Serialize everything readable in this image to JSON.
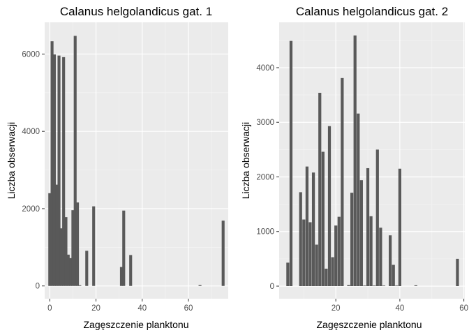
{
  "chart_data": [
    {
      "type": "histogram",
      "title": "Calanus helgolandicus gat. 1",
      "xlabel": "Zagęszczenie planktonu",
      "ylabel": "Liczba obserwacji",
      "xlim": [
        -2.2,
        77.2
      ],
      "ylim": [
        -330,
        6820
      ],
      "xticks": [
        0,
        20,
        40,
        60
      ],
      "yticks": [
        0,
        2000,
        4000,
        6000
      ],
      "grid": true,
      "bin_width": 1.25,
      "x": [
        0,
        1,
        2,
        3,
        4,
        5,
        6,
        7,
        8,
        9,
        10,
        11,
        12,
        13,
        16,
        19,
        31,
        32,
        35,
        65,
        75
      ],
      "values": [
        2400,
        6330,
        5990,
        2620,
        5960,
        1490,
        5920,
        1780,
        810,
        720,
        1960,
        6470,
        2160,
        20,
        910,
        2060,
        490,
        1950,
        800,
        25,
        1690
      ]
    },
    {
      "type": "histogram",
      "title": "Calanus helgolandicus gat. 2",
      "xlabel": "Zagęszczenie planktonu",
      "ylabel": "Liczba obserwacji",
      "xlim": [
        2.3,
        60.3
      ],
      "ylim": [
        -230,
        4830
      ],
      "xticks": [
        20,
        40,
        60
      ],
      "yticks": [
        0,
        1000,
        2000,
        3000,
        4000
      ],
      "grid": true,
      "bin_width": 0.92,
      "x": [
        5,
        6,
        9,
        10,
        11,
        12,
        13,
        14,
        15,
        16,
        17,
        18,
        19,
        20,
        21,
        22,
        24,
        25,
        26,
        27,
        28,
        29,
        30,
        31,
        32,
        33,
        34,
        35,
        37,
        38,
        39,
        40,
        45,
        58
      ],
      "values": [
        430,
        4490,
        1720,
        1220,
        2190,
        1170,
        2080,
        760,
        3540,
        2460,
        320,
        2930,
        530,
        1110,
        1270,
        3810,
        20,
        1710,
        4590,
        3160,
        1940,
        10,
        2160,
        1280,
        10,
        2500,
        1070,
        10,
        930,
        390,
        10,
        2150,
        15,
        500
      ]
    }
  ]
}
